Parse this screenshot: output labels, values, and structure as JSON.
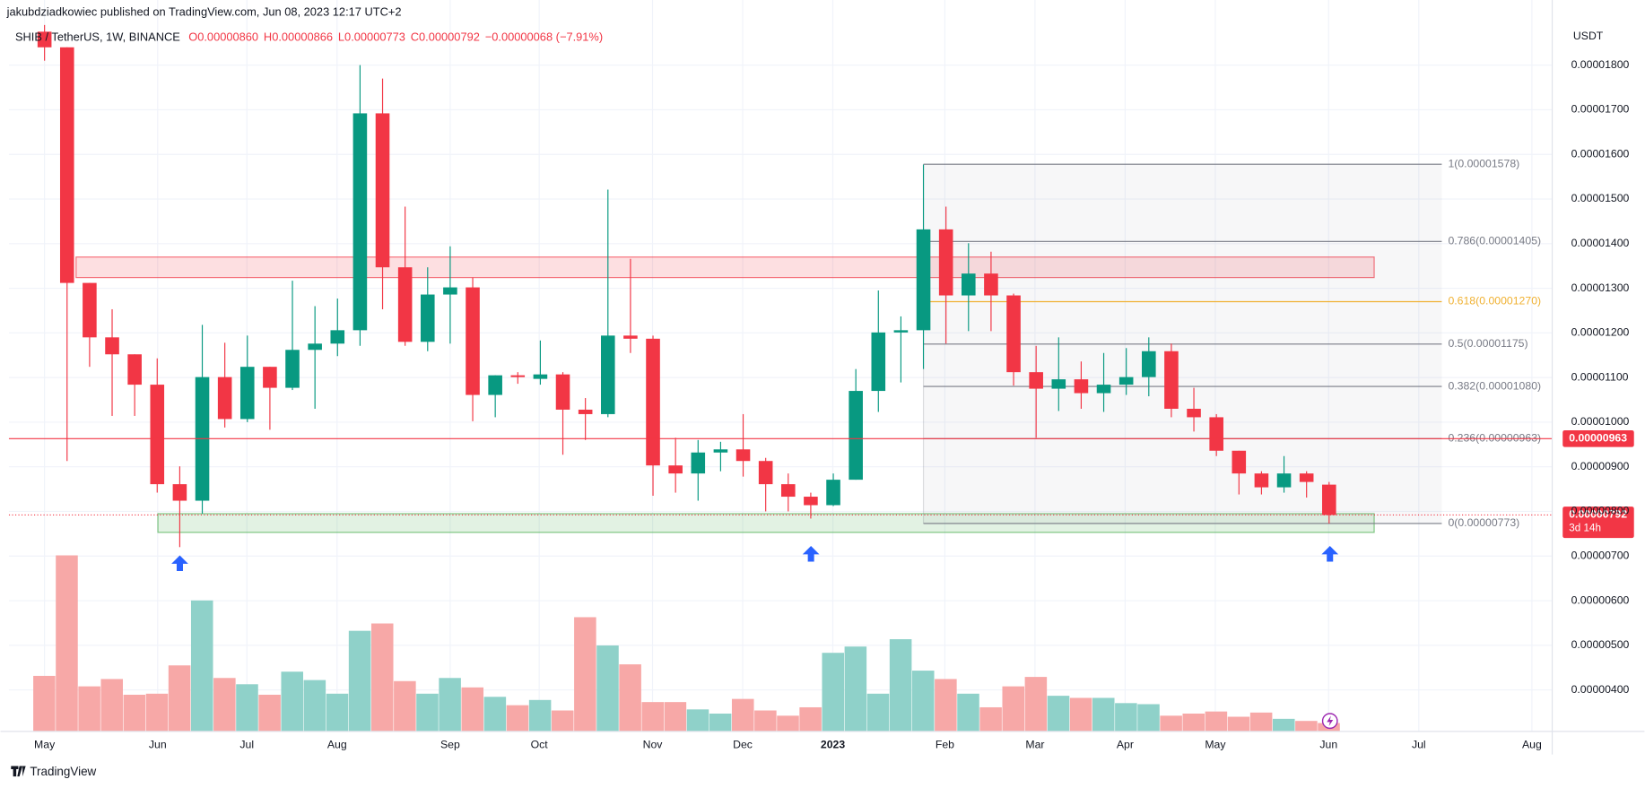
{
  "chart_data": {
    "type": "candlestick",
    "published": "jakubdziadkowiec published on TradingView.com, Jun 08, 2023 12:17 UTC+2",
    "title": "SHIB / TetherUS, 1W, BINANCE",
    "ohlc_legend": [
      "O0.00000860",
      "H0.00000866",
      "L0.00000773",
      "C0.00000792",
      "−0.00000068 (−7.91%)"
    ],
    "y_axis_label": "USDT",
    "watermark": "TradingView",
    "up_color": "#089981",
    "down_color": "#f23645",
    "volume_up_color": "#8fd1c9",
    "volume_down_color": "#f7a8a7",
    "x": [
      0,
      1,
      2,
      3,
      4,
      5,
      6,
      7,
      8,
      9,
      10,
      11,
      12,
      13,
      14,
      15,
      16,
      17,
      18,
      19,
      20,
      21,
      22,
      23,
      24,
      25,
      26,
      27,
      28,
      29,
      30,
      31,
      32,
      33,
      34,
      35,
      36,
      37,
      38,
      39,
      40,
      41,
      42,
      43,
      44,
      45,
      46,
      47,
      48,
      49,
      50,
      51,
      52,
      53,
      54,
      55,
      56,
      57
    ],
    "open": [
      1.875e-05,
      1.84e-05,
      1.312e-05,
      1.19e-05,
      1.152e-05,
      1.084e-05,
      8.61e-06,
      8.24e-06,
      1.101e-05,
      1.007e-05,
      1.124e-05,
      1.077e-05,
      1.162e-05,
      1.176e-05,
      1.206e-05,
      1.692e-05,
      1.347e-05,
      1.18e-05,
      1.286e-05,
      1.302e-05,
      1.061e-05,
      1.105e-05,
      1.097e-05,
      1.107e-05,
      1.028e-05,
      1.018e-05,
      1.194e-05,
      1.187e-05,
      9.03e-06,
      8.85e-06,
      9.32e-06,
      9.39e-06,
      9.13e-06,
      8.61e-06,
      8.33e-06,
      8.14e-06,
      8.71e-06,
      1.07e-05,
      1.201e-05,
      1.206e-05,
      1.432e-05,
      1.284e-05,
      1.333e-05,
      1.284e-05,
      1.112e-05,
      1.075e-05,
      1.096e-05,
      1.065e-05,
      1.084e-05,
      1.101e-05,
      1.159e-05,
      1.03e-05,
      1.011e-05,
      9.36e-06,
      8.85e-06,
      8.54e-06,
      8.85e-06,
      8.6e-06
    ],
    "high": [
      1.89e-05,
      1.84e-05,
      1.312e-05,
      1.253e-05,
      1.152e-05,
      1.143e-05,
      9.01e-06,
      1.218e-05,
      1.178e-05,
      1.194e-05,
      1.124e-05,
      1.317e-05,
      1.26e-05,
      1.277e-05,
      1.8e-05,
      1.77e-05,
      1.483e-05,
      1.347e-05,
      1.394e-05,
      1.324e-05,
      1.105e-05,
      1.112e-05,
      1.183e-05,
      1.112e-05,
      1.054e-05,
      1.521e-05,
      1.366e-05,
      1.194e-05,
      9.65e-06,
      9.6e-06,
      9.56e-06,
      1.018e-05,
      9.2e-06,
      8.85e-06,
      8.42e-06,
      8.85e-06,
      1.119e-05,
      1.295e-05,
      1.237e-05,
      1.577e-05,
      1.483e-05,
      1.401e-05,
      1.382e-05,
      1.288e-05,
      1.171e-05,
      1.19e-05,
      1.136e-05,
      1.155e-05,
      1.166e-05,
      1.19e-05,
      1.176e-05,
      1.077e-05,
      1.018e-05,
      9.36e-06,
      8.9e-06,
      9.24e-06,
      8.9e-06,
      8.66e-06
    ],
    "low": [
      1.81e-05,
      9.13e-06,
      1.124e-05,
      1.014e-05,
      1.014e-05,
      8.42e-06,
      7.2e-06,
      7.95e-06,
      9.88e-06,
      1e-05,
      9.83e-06,
      1.072e-05,
      1.03e-05,
      1.148e-05,
      1.171e-05,
      1.253e-05,
      1.171e-05,
      1.159e-05,
      1.176e-05,
      1.002e-05,
      1.011e-05,
      1.086e-05,
      1.084e-05,
      9.27e-06,
      9.6e-06,
      1.011e-05,
      1.155e-05,
      8.35e-06,
      8.42e-06,
      8.24e-06,
      8.9e-06,
      8.78e-06,
      8e-06,
      8e-06,
      7.84e-06,
      8.12e-06,
      8.71e-06,
      1.023e-05,
      1.089e-05,
      1.119e-05,
      1.176e-05,
      1.204e-05,
      1.204e-05,
      1.082e-05,
      9.65e-06,
      1.025e-05,
      1.03e-05,
      1.023e-05,
      1.061e-05,
      1.058e-05,
      1.011e-05,
      9.79e-06,
      9.24e-06,
      8.38e-06,
      8.38e-06,
      8.42e-06,
      8.31e-06,
      7.73e-06
    ],
    "close": [
      1.84e-05,
      1.312e-05,
      1.19e-05,
      1.152e-05,
      1.084e-05,
      8.61e-06,
      8.24e-06,
      1.101e-05,
      1.007e-05,
      1.124e-05,
      1.077e-05,
      1.162e-05,
      1.176e-05,
      1.206e-05,
      1.692e-05,
      1.347e-05,
      1.18e-05,
      1.286e-05,
      1.302e-05,
      1.061e-05,
      1.105e-05,
      1.101e-05,
      1.107e-05,
      1.028e-05,
      1.018e-05,
      1.194e-05,
      1.187e-05,
      9.03e-06,
      8.85e-06,
      9.32e-06,
      9.39e-06,
      9.13e-06,
      8.61e-06,
      8.33e-06,
      8.14e-06,
      8.71e-06,
      1.07e-05,
      1.201e-05,
      1.206e-05,
      1.432e-05,
      1.284e-05,
      1.333e-05,
      1.284e-05,
      1.112e-05,
      1.075e-05,
      1.096e-05,
      1.065e-05,
      1.084e-05,
      1.101e-05,
      1.159e-05,
      1.03e-05,
      1.011e-05,
      9.36e-06,
      8.85e-06,
      8.54e-06,
      8.85e-06,
      8.66e-06,
      7.92e-06
    ],
    "volume": [
      53,
      168,
      43,
      50,
      35,
      36,
      63,
      125,
      51,
      45,
      35,
      57,
      49,
      36,
      96,
      103,
      48,
      36,
      51,
      42,
      33,
      25,
      30,
      20,
      109,
      82,
      64,
      28,
      28,
      21,
      17,
      31,
      20,
      15,
      23,
      75,
      81,
      36,
      88,
      58,
      50,
      36,
      23,
      43,
      52,
      34,
      32,
      32,
      27,
      26,
      15,
      17,
      19,
      14,
      18,
      12,
      10,
      8
    ],
    "volume_lim": [
      0,
      200
    ],
    "xlim": [
      -1.58,
      66.9
    ],
    "ylim": [
      3.07e-06,
      1.946e-05
    ],
    "yticks": [
      {
        "value": 4e-06,
        "label": "0.00000400"
      },
      {
        "value": 5e-06,
        "label": "0.00000500"
      },
      {
        "value": 6e-06,
        "label": "0.00000600"
      },
      {
        "value": 7e-06,
        "label": "0.00000700"
      },
      {
        "value": 8e-06,
        "label": "0.00000800"
      },
      {
        "value": 9e-06,
        "label": "0.00000900"
      },
      {
        "value": 1e-05,
        "label": "0.00001000"
      },
      {
        "value": 1.1e-05,
        "label": "0.00001100"
      },
      {
        "value": 1.2e-05,
        "label": "0.00001200"
      },
      {
        "value": 1.3e-05,
        "label": "0.00001300"
      },
      {
        "value": 1.4e-05,
        "label": "0.00001400"
      },
      {
        "value": 1.5e-05,
        "label": "0.00001500"
      },
      {
        "value": 1.6e-05,
        "label": "0.00001600"
      },
      {
        "value": 1.7e-05,
        "label": "0.00001700"
      },
      {
        "value": 1.8e-05,
        "label": "0.00001800"
      }
    ],
    "xticks": [
      {
        "value": 0,
        "label": "May"
      },
      {
        "value": 5.02,
        "label": "Jun"
      },
      {
        "value": 8.98,
        "label": "Jul"
      },
      {
        "value": 12.98,
        "label": "Aug"
      },
      {
        "value": 18.0,
        "label": "Sep"
      },
      {
        "value": 21.95,
        "label": "Oct"
      },
      {
        "value": 26.98,
        "label": "Nov"
      },
      {
        "value": 30.98,
        "label": "Dec"
      },
      {
        "value": 34.98,
        "label": "2023"
      },
      {
        "value": 39.95,
        "label": "Feb"
      },
      {
        "value": 43.95,
        "label": "Mar"
      },
      {
        "value": 47.95,
        "label": "Apr"
      },
      {
        "value": 51.95,
        "label": "May"
      },
      {
        "value": 56.98,
        "label": "Jun"
      },
      {
        "value": 60.98,
        "label": "Jul"
      },
      {
        "value": 66.0,
        "label": "Aug"
      }
    ],
    "grid": true,
    "horizontal_line": {
      "value": 9.63e-06,
      "label": "0.00000963",
      "color": "#f23645"
    },
    "last_price_label": "0.00000792",
    "countdown": "3d 14h",
    "zones": [
      {
        "from": 1.324e-05,
        "to": 1.37e-05,
        "x": [
          1.4,
          59
        ],
        "color": "#f23645"
      },
      {
        "from": 7.53e-06,
        "to": 7.95e-06,
        "x": [
          5.03,
          59
        ],
        "color": "#4caf50"
      }
    ],
    "fib": {
      "x": [
        39,
        62
      ],
      "color": "#787b86",
      "highlight_color": "#f0b132",
      "levels": [
        {
          "value": 1.578e-05,
          "label": "1(0.00001578)"
        },
        {
          "value": 1.405e-05,
          "label": "0.786(0.00001405)"
        },
        {
          "value": 1.27e-05,
          "label": "0.618(0.00001270)",
          "highlight": true
        },
        {
          "value": 1.175e-05,
          "label": "0.5(0.00001175)"
        },
        {
          "value": 1.08e-05,
          "label": "0.382(0.00001080)"
        },
        {
          "value": 9.63e-06,
          "label": "0.236(0.00000963)"
        },
        {
          "value": 7.73e-06,
          "label": "0(0.00000773)"
        }
      ]
    }
  }
}
